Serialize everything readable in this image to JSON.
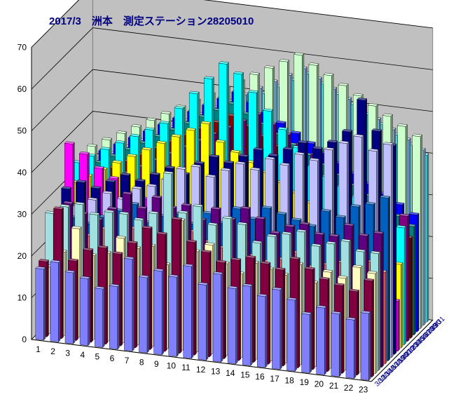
{
  "chart_data": {
    "type": "bar3d",
    "title": "2017/3　洲本　測定ステーション28205010",
    "xlabel": "",
    "ylabel": "",
    "zlim": [
      0,
      70
    ],
    "z_ticks": [
      0,
      10,
      20,
      30,
      40,
      50,
      60,
      70
    ],
    "grid": true,
    "x_categories": [
      "1",
      "2",
      "3",
      "4",
      "5",
      "6",
      "7",
      "8",
      "9",
      "10",
      "11",
      "12",
      "13",
      "14",
      "15",
      "16",
      "17",
      "18",
      "19",
      "20",
      "21",
      "22",
      "23"
    ],
    "y_categories": [
      "3/12",
      "3/13",
      "3/14",
      "3/16",
      "3/17",
      "3/18",
      "3/19",
      "3/20",
      "3/21",
      "3/22",
      "3/23",
      "3/24",
      "3/25",
      "3/26",
      "3/27",
      "3/28",
      "3/29",
      "3/30",
      "3/31"
    ],
    "series_colors": [
      "#8080ff",
      "#800040",
      "#ffffc0",
      "#a0e0e0",
      "#600080",
      "#ff8080",
      "#0060c0",
      "#c0c0ff",
      "#000080",
      "#ff00ff",
      "#ffff00",
      "#00ffff",
      "#800080",
      "#8b0000",
      "#008080",
      "#0000ff",
      "#ccffcc",
      "#99ccff",
      "#66ffff"
    ],
    "values": [
      [
        17,
        19,
        17,
        16,
        14,
        15,
        22,
        18,
        20,
        19,
        22,
        18,
        21,
        18,
        19,
        17,
        19,
        17,
        14,
        16,
        15,
        14,
        16
      ],
      [
        18,
        31,
        19,
        22,
        23,
        22,
        25,
        29,
        28,
        32,
        27,
        25,
        23,
        24,
        25,
        24,
        23,
        26,
        24,
        22,
        21,
        20,
        23
      ],
      [
        16,
        20,
        26,
        20,
        21,
        25,
        23,
        24,
        20,
        31,
        24,
        26,
        22,
        20,
        23,
        22,
        21,
        24,
        20,
        23,
        22,
        25,
        24
      ],
      [
        28,
        30,
        31,
        29,
        30,
        30,
        29,
        31,
        41,
        32,
        34,
        30,
        32,
        31,
        27,
        29,
        30,
        31,
        28,
        29,
        30,
        28,
        28
      ],
      [
        22,
        30,
        28,
        27,
        30,
        34,
        31,
        34,
        32,
        33,
        30,
        33,
        31,
        34,
        32,
        29,
        31,
        32,
        30,
        30,
        33,
        31,
        32
      ],
      [
        20,
        21,
        22,
        24,
        22,
        25,
        21,
        23,
        22,
        26,
        24,
        23,
        18,
        22,
        21,
        22,
        24,
        21,
        22,
        23,
        20,
        24,
        22
      ],
      [
        23,
        25,
        24,
        26,
        28,
        30,
        26,
        28,
        29,
        27,
        30,
        28,
        32,
        30,
        33,
        32,
        31,
        30,
        34,
        33,
        36,
        37,
        39
      ],
      [
        25,
        27,
        29,
        31,
        30,
        33,
        34,
        36,
        39,
        40,
        38,
        40,
        42,
        41,
        44,
        43,
        46,
        45,
        48,
        50,
        52,
        49,
        51
      ],
      [
        30,
        32,
        31,
        33,
        35,
        34,
        36,
        38,
        37,
        40,
        42,
        41,
        43,
        45,
        44,
        46,
        48,
        47,
        49,
        52,
        60,
        53,
        50
      ],
      [
        40,
        38,
        35,
        33,
        30,
        29,
        28,
        27,
        26,
        25,
        24,
        23,
        22,
        21,
        20,
        19,
        18,
        17,
        16,
        15,
        14,
        13,
        12
      ],
      [
        30,
        32,
        34,
        36,
        38,
        40,
        42,
        44,
        46,
        48,
        44,
        42,
        40,
        38,
        36,
        34,
        32,
        30,
        28,
        26,
        24,
        22,
        20
      ],
      [
        34,
        36,
        38,
        40,
        42,
        44,
        46,
        50,
        54,
        58,
        62,
        60,
        56,
        52,
        48,
        44,
        40,
        38,
        36,
        34,
        32,
        30,
        28
      ],
      [
        26,
        28,
        30,
        32,
        34,
        36,
        38,
        40,
        42,
        44,
        46,
        48,
        50,
        48,
        46,
        44,
        42,
        40,
        38,
        36,
        34,
        32,
        30
      ],
      [
        28,
        30,
        32,
        34,
        36,
        38,
        40,
        42,
        44,
        46,
        48,
        46,
        44,
        42,
        40,
        38,
        36,
        34,
        32,
        30,
        28,
        26,
        24
      ],
      [
        30,
        32,
        34,
        36,
        38,
        40,
        42,
        44,
        46,
        48,
        50,
        48,
        46,
        44,
        42,
        40,
        38,
        36,
        34,
        32,
        30,
        28,
        26
      ],
      [
        32,
        34,
        36,
        38,
        40,
        42,
        44,
        46,
        48,
        50,
        52,
        50,
        48,
        46,
        44,
        42,
        40,
        38,
        36,
        34,
        32,
        30,
        28
      ],
      [
        34,
        36,
        38,
        40,
        42,
        44,
        46,
        48,
        50,
        52,
        54,
        56,
        58,
        60,
        62,
        60,
        58,
        56,
        54,
        52,
        50,
        48,
        46
      ],
      [
        30,
        32,
        34,
        36,
        38,
        40,
        42,
        44,
        46,
        48,
        50,
        52,
        54,
        56,
        58,
        56,
        54,
        52,
        50,
        48,
        46,
        44,
        42
      ],
      [
        28,
        30,
        32,
        34,
        36,
        38,
        40,
        42,
        44,
        46,
        48,
        50,
        52,
        54,
        56,
        54,
        52,
        50,
        48,
        46,
        44,
        42,
        40
      ]
    ]
  }
}
